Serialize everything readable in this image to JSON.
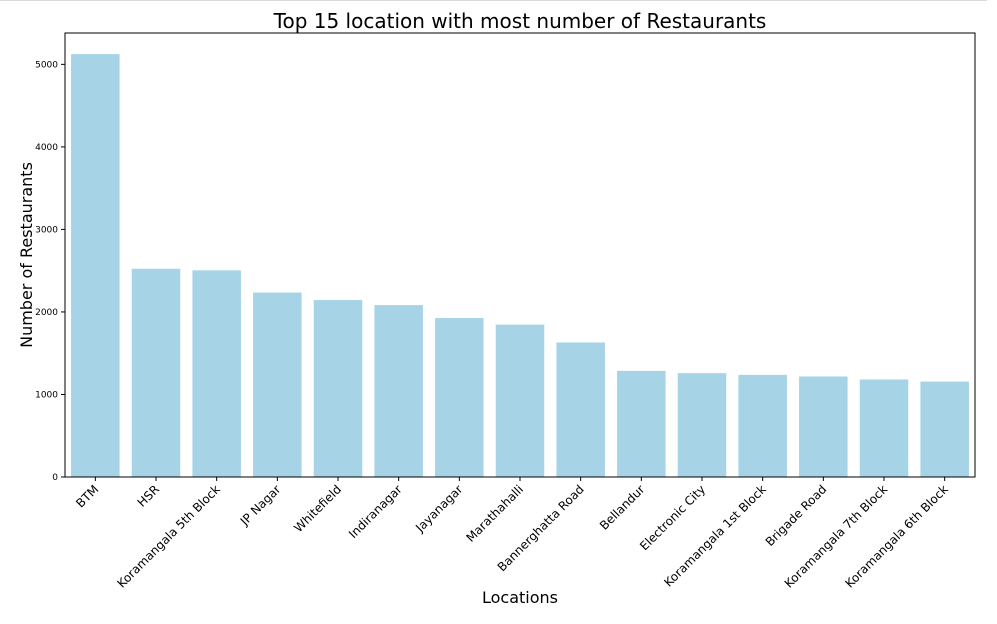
{
  "chart_data": {
    "type": "bar",
    "title": "Top 15 location with most number of Restaurants",
    "xlabel": "Locations",
    "ylabel": "Number of Restaurants",
    "categories": [
      "BTM",
      "HSR",
      "Koramangala 5th Block",
      "JP Nagar",
      "Whitefield",
      "Indiranagar",
      "Jayanagar",
      "Marathahalli",
      "Bannerghatta Road",
      "Bellandur",
      "Electronic City",
      "Koramangala 1st Block",
      "Brigade Road",
      "Koramangala 7th Block",
      "Koramangala 6th Block"
    ],
    "values": [
      5124,
      2523,
      2504,
      2235,
      2144,
      2083,
      1926,
      1846,
      1630,
      1286,
      1258,
      1238,
      1218,
      1181,
      1156
    ],
    "ylim": [
      0,
      5380
    ],
    "yticks": [
      0,
      1000,
      2000,
      3000,
      4000,
      5000
    ],
    "bar_color": "#a6d4e6",
    "grid": false
  }
}
